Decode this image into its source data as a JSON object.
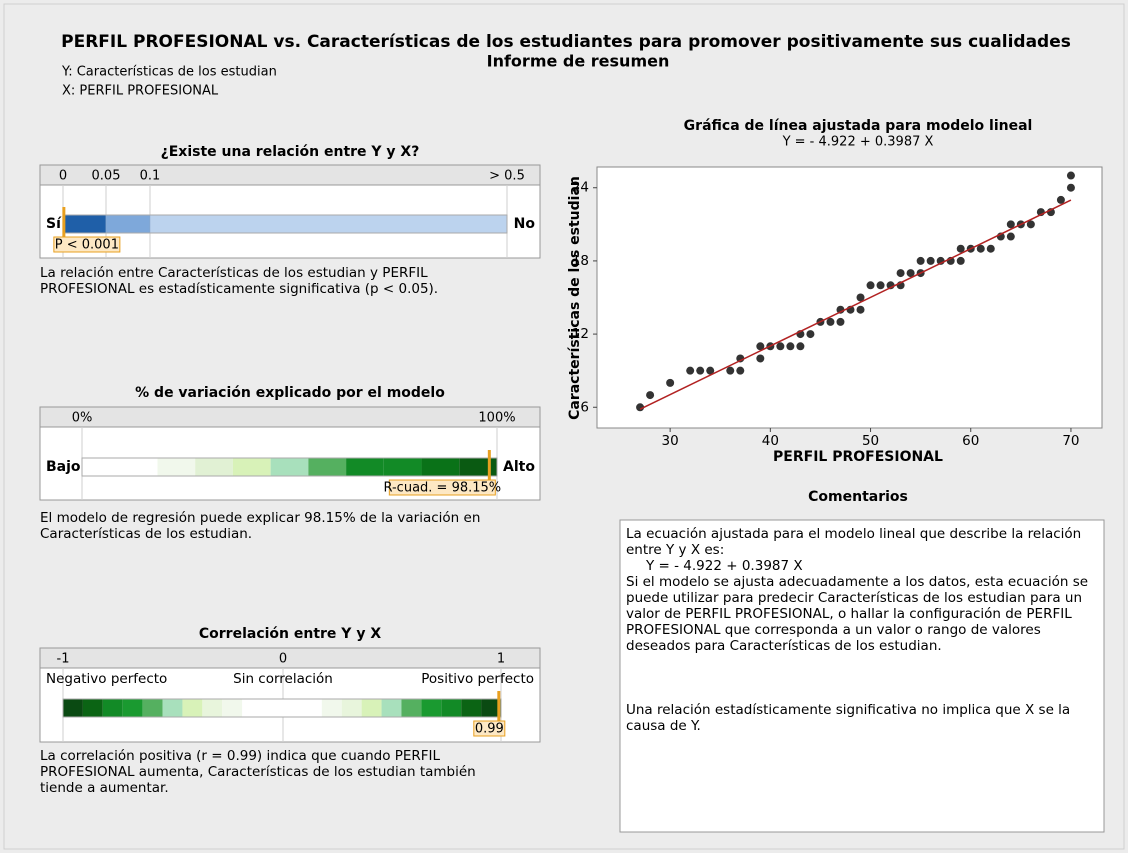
{
  "header": {
    "title": "PERFIL PROFESIONAL vs. Características de los  estudiantes para promover positivamente sus cualidades",
    "subtitle": "Informe de resumen",
    "y_note": "Y: Características de los estudian",
    "x_note": "X: PERFIL PROFESIONAL"
  },
  "pvalue_gauge": {
    "title": "¿Existe una relación entre Y y X?",
    "ticks": [
      0,
      0.05,
      0.1,
      {
        "value": 0.5,
        "label": "> 0.5"
      }
    ],
    "left_label": "Sí",
    "right_label": "No",
    "value": 0.001,
    "value_label": "P < 0.001",
    "description": "La relación entre Características de los estudian y PERFIL PROFESIONAL es estadísticamente significativa (p < 0.05)."
  },
  "r2_gauge": {
    "title": "% de variación explicado por el modelo",
    "ticks": [
      {
        "value": 0,
        "label": "0%"
      },
      {
        "value": 100,
        "label": "100%"
      }
    ],
    "left_label": "Bajo",
    "right_label": "Alto",
    "value": 98.15,
    "value_label": "R-cuad. = 98.15%",
    "description": "El modelo de regresión puede explicar 98.15% de la variación en Características de los estudian."
  },
  "corr_gauge": {
    "title": "Correlación entre Y y X",
    "ticks": [
      -1,
      0,
      1
    ],
    "tick_captions": [
      "Negativo perfecto",
      "Sin correlación",
      "Positivo perfecto"
    ],
    "value": 0.99,
    "description": "La correlación positiva (r = 0.99) indica que cuando PERFIL PROFESIONAL aumenta, Características de los estudian también tiende a aumentar."
  },
  "chart_data": {
    "type": "scatter",
    "title": "Gráfica de línea ajustada para modelo lineal",
    "subtitle": "Y = - 4.922 + 0.3987 X",
    "x_label": "PERFIL PROFESIONAL",
    "y_label": "Características de los estudian",
    "color": "#333333",
    "fit": {
      "intercept": -4.922,
      "slope": 0.3987,
      "color": "#b22222"
    },
    "x": [
      27,
      28,
      30,
      32,
      33,
      34,
      36,
      37,
      37,
      39,
      39,
      40,
      41,
      42,
      43,
      43,
      44,
      45,
      46,
      47,
      47,
      48,
      49,
      49,
      50,
      51,
      52,
      53,
      53,
      54,
      55,
      55,
      56,
      57,
      58,
      59,
      59,
      60,
      61,
      62,
      63,
      64,
      64,
      65,
      66,
      67,
      68,
      69,
      70,
      70
    ],
    "values": [
      6,
      7,
      8,
      9,
      9,
      9,
      9,
      9,
      10,
      10,
      11,
      11,
      11,
      11,
      11,
      12,
      12,
      13,
      13,
      13,
      14,
      14,
      14,
      15,
      16,
      16,
      16,
      16,
      17,
      17,
      17,
      18,
      18,
      18,
      18,
      18,
      19,
      19,
      19,
      19,
      20,
      20,
      21,
      21,
      21,
      22,
      22,
      23,
      24,
      25
    ],
    "xlim": [
      22.7,
      73.1
    ],
    "ylim": [
      4.3,
      25.7
    ],
    "xticks": [
      30,
      40,
      50,
      60,
      70
    ],
    "yticks": [
      6,
      12,
      18,
      24
    ]
  },
  "comments": {
    "title": "Comentarios",
    "paragraphs": [
      "La ecuación ajustada para el modelo lineal que describe la relación entre Y y X es:",
      "Y = - 4.922 + 0.3987 X",
      "Si el modelo se ajusta adecuadamente a los datos, esta ecuación se puede utilizar para predecir Características de los estudian para un valor de PERFIL PROFESIONAL, o hallar la configuración de PERFIL PROFESIONAL que corresponda a un valor o rango de valores deseados para Características de los estudian.",
      "Una relación estadísticamente significativa no implica que X se la causa de Y."
    ]
  }
}
